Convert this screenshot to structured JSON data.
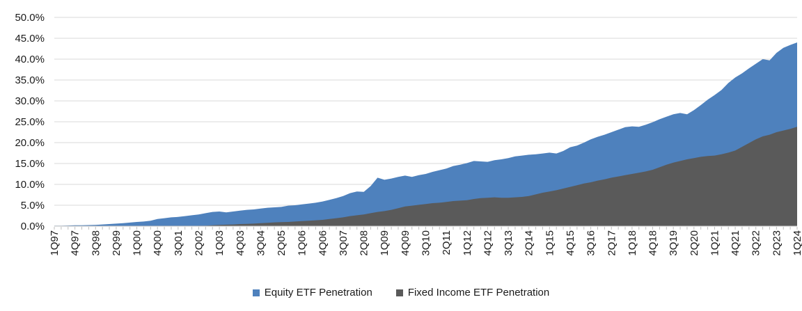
{
  "chart_data": {
    "type": "area",
    "title": "",
    "grid": true,
    "legend_position": "bottom",
    "overlap_note": "overlapping areas from zero; fixed income drawn in front of equity",
    "y_axis": {
      "min": 0,
      "max": 50,
      "step": 5,
      "tick_labels": [
        "0.0%",
        "5.0%",
        "10.0%",
        "15.0%",
        "20.0%",
        "25.0%",
        "30.0%",
        "35.0%",
        "40.0%",
        "45.0%",
        "50.0%"
      ]
    },
    "x_tick_label_every": 3,
    "x_tick_labels_visible": [
      "1Q97",
      "4Q97",
      "3Q98",
      "2Q99",
      "1Q00",
      "4Q00",
      "3Q01",
      "2Q02",
      "1Q03",
      "4Q03",
      "3Q04",
      "2Q05",
      "1Q06",
      "4Q06",
      "3Q07",
      "2Q08",
      "1Q09",
      "4Q09",
      "3Q10",
      "2Q11",
      "1Q12",
      "4Q12",
      "3Q13",
      "2Q14",
      "1Q15",
      "4Q15",
      "3Q16",
      "2Q17",
      "1Q18",
      "4Q18",
      "3Q19",
      "2Q20",
      "1Q21",
      "4Q21",
      "3Q22",
      "2Q23",
      "1Q24"
    ],
    "categories": [
      "1Q97",
      "2Q97",
      "3Q97",
      "4Q97",
      "1Q98",
      "2Q98",
      "3Q98",
      "4Q98",
      "1Q99",
      "2Q99",
      "3Q99",
      "4Q99",
      "1Q00",
      "2Q00",
      "3Q00",
      "4Q00",
      "1Q01",
      "2Q01",
      "3Q01",
      "4Q01",
      "1Q02",
      "2Q02",
      "3Q02",
      "4Q02",
      "1Q03",
      "2Q03",
      "3Q03",
      "4Q03",
      "1Q04",
      "2Q04",
      "3Q04",
      "4Q04",
      "1Q05",
      "2Q05",
      "3Q05",
      "4Q05",
      "1Q06",
      "2Q06",
      "3Q06",
      "4Q06",
      "1Q07",
      "2Q07",
      "3Q07",
      "4Q07",
      "1Q08",
      "2Q08",
      "3Q08",
      "4Q08",
      "1Q09",
      "2Q09",
      "3Q09",
      "4Q09",
      "1Q10",
      "2Q10",
      "3Q10",
      "4Q10",
      "1Q11",
      "2Q11",
      "3Q11",
      "4Q11",
      "1Q12",
      "2Q12",
      "3Q12",
      "4Q12",
      "1Q13",
      "2Q13",
      "3Q13",
      "4Q13",
      "1Q14",
      "2Q14",
      "3Q14",
      "4Q14",
      "1Q15",
      "2Q15",
      "3Q15",
      "4Q15",
      "1Q16",
      "2Q16",
      "3Q16",
      "4Q16",
      "1Q17",
      "2Q17",
      "3Q17",
      "4Q17",
      "1Q18",
      "2Q18",
      "3Q18",
      "4Q18",
      "1Q19",
      "2Q19",
      "3Q19",
      "4Q19",
      "1Q20",
      "2Q20",
      "3Q20",
      "4Q20",
      "1Q21",
      "2Q21",
      "3Q21",
      "4Q21",
      "1Q22",
      "2Q22",
      "3Q22",
      "4Q22",
      "1Q23",
      "2Q23",
      "3Q23",
      "4Q23",
      "1Q24"
    ],
    "series": [
      {
        "name": "Equity ETF Penetration",
        "color": "#4E81BD",
        "values": [
          0.1,
          0.1,
          0.15,
          0.2,
          0.2,
          0.25,
          0.3,
          0.4,
          0.5,
          0.6,
          0.7,
          0.85,
          1.0,
          1.1,
          1.3,
          1.7,
          1.9,
          2.1,
          2.2,
          2.4,
          2.6,
          2.8,
          3.1,
          3.4,
          3.5,
          3.3,
          3.5,
          3.7,
          3.9,
          4.0,
          4.2,
          4.4,
          4.5,
          4.6,
          4.9,
          5.0,
          5.2,
          5.4,
          5.6,
          5.9,
          6.3,
          6.7,
          7.2,
          7.9,
          8.3,
          8.2,
          9.6,
          11.6,
          11.1,
          11.4,
          11.8,
          12.1,
          11.8,
          12.2,
          12.5,
          13.0,
          13.4,
          13.8,
          14.4,
          14.7,
          15.1,
          15.6,
          15.5,
          15.4,
          15.8,
          16.0,
          16.3,
          16.7,
          16.9,
          17.1,
          17.2,
          17.4,
          17.6,
          17.4,
          18.0,
          18.9,
          19.3,
          20.0,
          20.8,
          21.4,
          21.9,
          22.5,
          23.1,
          23.7,
          23.9,
          23.8,
          24.3,
          24.9,
          25.6,
          26.2,
          26.8,
          27.1,
          26.8,
          27.8,
          29.0,
          30.3,
          31.4,
          32.6,
          34.3,
          35.6,
          36.6,
          37.8,
          38.9,
          40.0,
          39.7,
          41.5,
          42.7,
          43.4,
          44.0
        ]
      },
      {
        "name": "Fixed Income ETF Penetration",
        "color": "#5A5A5A",
        "values": [
          0,
          0,
          0,
          0,
          0,
          0,
          0,
          0,
          0,
          0,
          0,
          0,
          0,
          0,
          0,
          0,
          0,
          0,
          0,
          0,
          0,
          0.1,
          0.1,
          0.2,
          0.3,
          0.35,
          0.4,
          0.5,
          0.55,
          0.6,
          0.7,
          0.8,
          0.9,
          0.95,
          1.0,
          1.1,
          1.2,
          1.3,
          1.4,
          1.5,
          1.7,
          1.9,
          2.1,
          2.4,
          2.6,
          2.8,
          3.1,
          3.4,
          3.6,
          3.9,
          4.3,
          4.7,
          4.9,
          5.1,
          5.3,
          5.5,
          5.6,
          5.8,
          6.0,
          6.1,
          6.2,
          6.5,
          6.7,
          6.8,
          6.9,
          6.8,
          6.8,
          6.9,
          7.0,
          7.2,
          7.6,
          8.0,
          8.3,
          8.6,
          9.0,
          9.4,
          9.8,
          10.2,
          10.5,
          10.9,
          11.2,
          11.6,
          11.9,
          12.2,
          12.5,
          12.8,
          13.1,
          13.5,
          14.1,
          14.7,
          15.2,
          15.6,
          16.0,
          16.3,
          16.6,
          16.8,
          16.9,
          17.2,
          17.6,
          18.1,
          19.0,
          19.9,
          20.8,
          21.5,
          21.9,
          22.5,
          22.9,
          23.3,
          23.8
        ]
      }
    ],
    "colors": {
      "gridline": "#d9d9d9",
      "axis_line": "#bfbfbf",
      "tick_mark": "#bfbfbf",
      "tick_label_text": "#1a1a1a"
    }
  }
}
